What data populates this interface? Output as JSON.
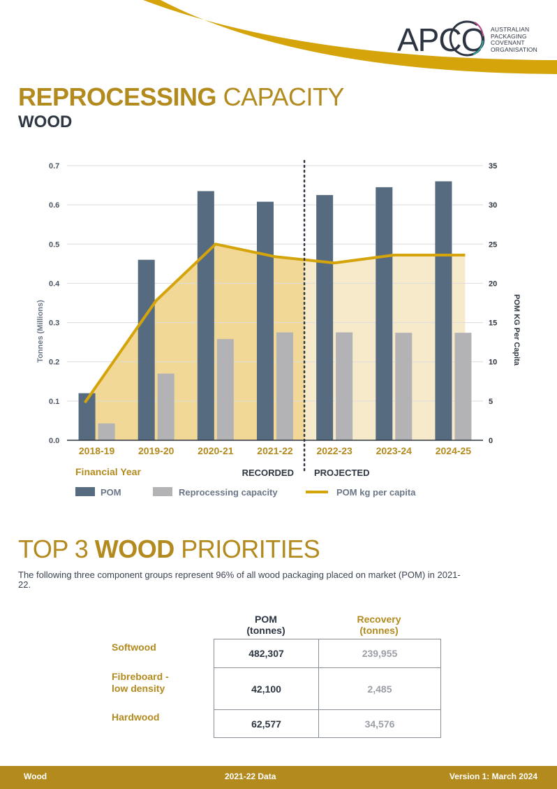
{
  "logo": {
    "word": "APCO",
    "tagline_lines": [
      "AUSTRALIAN",
      "PACKAGING",
      "COVENANT",
      "ORGANISATION"
    ]
  },
  "header": {
    "title_bold": "REPROCESSING",
    "title_rest": "CAPACITY",
    "subtitle": "WOOD"
  },
  "colors": {
    "gold": "#b38a1e",
    "line_gold": "#d4a40a",
    "pom_bar": "#566b80",
    "reproc_bar": "#b3b3b5",
    "recorded_fill": "#f1d897",
    "projected_fill": "#f6eacb",
    "dark_text": "#2e3642"
  },
  "chart_data": {
    "type": "bar",
    "categories": [
      "2018-19",
      "2019-20",
      "2020-21",
      "2021-22",
      "2022-23",
      "2023-24",
      "2024-25"
    ],
    "series": [
      {
        "name": "POM",
        "kind": "bar",
        "axis": "left",
        "values": [
          0.12,
          0.46,
          0.635,
          0.608,
          0.625,
          0.645,
          0.66
        ]
      },
      {
        "name": "Reprocessing capacity",
        "kind": "bar",
        "axis": "left",
        "values": [
          0.043,
          0.17,
          0.258,
          0.275,
          0.275,
          0.274,
          0.274
        ]
      },
      {
        "name": "POM kg per capita",
        "kind": "line",
        "axis": "right",
        "values": [
          4.8,
          17.8,
          25.0,
          23.4,
          22.6,
          23.6,
          23.6
        ]
      }
    ],
    "ylabel": "Tonnes (Millions)",
    "ylim": [
      0,
      0.7
    ],
    "yticks": [
      "0.0",
      "0.1",
      "0.2",
      "0.3",
      "0.4",
      "0.5",
      "0.6",
      "0.7"
    ],
    "y2label": "POM KG Per Capita",
    "y2lim": [
      0,
      35
    ],
    "y2ticks": [
      "0",
      "5",
      "10",
      "15",
      "20",
      "25",
      "30",
      "35"
    ],
    "xlabel": "Financial Year",
    "recorded_label": "RECORDED",
    "projected_label": "PROJECTED",
    "grid": true,
    "legend_position": "bottom"
  },
  "priorities": {
    "title_pre": "TOP 3",
    "title_bold": "WOOD",
    "title_post": "PRIORITIES",
    "intro": "The following three component groups represent 96% of all wood packaging placed on market (POM) in 2021-22.",
    "col_pom": [
      "POM",
      "(tonnes)"
    ],
    "col_recovery": [
      "Recovery",
      "(tonnes)"
    ],
    "rows": [
      {
        "label": [
          "Softwood"
        ],
        "pom": "482,307",
        "recovery": "239,955"
      },
      {
        "label": [
          "Fibreboard -",
          "low density"
        ],
        "pom": "42,100",
        "recovery": "2,485"
      },
      {
        "label": [
          "Hardwood"
        ],
        "pom": "62,577",
        "recovery": "34,576"
      }
    ]
  },
  "footer": {
    "left": "Wood",
    "center": "2021-22 Data",
    "right": "Version 1: March 2024"
  }
}
